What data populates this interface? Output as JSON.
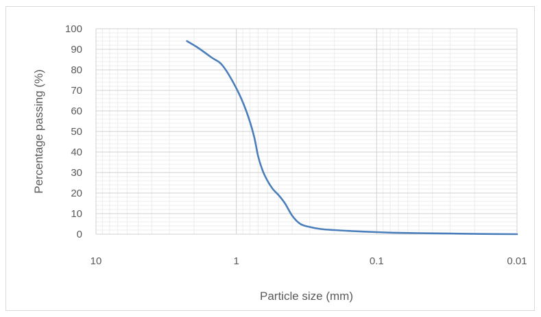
{
  "chart_data": {
    "type": "line",
    "xlabel": "Particle size (mm)",
    "ylabel": "Percentage passing (%)",
    "x_scale": "log",
    "x_reversed": true,
    "xlim": [
      10,
      0.01
    ],
    "ylim": [
      0,
      100
    ],
    "x_ticks": [
      10,
      1,
      0.1,
      0.01
    ],
    "x_tick_labels": [
      "10",
      "1",
      "0.1",
      "0.01"
    ],
    "y_ticks": [
      0,
      10,
      20,
      30,
      40,
      50,
      60,
      70,
      80,
      90,
      100
    ],
    "grid": true,
    "legend": "none",
    "series": [
      {
        "color": "#4a7ebb",
        "x": [
          2.25,
          1.9,
          1.5,
          1.25,
          1.0,
          0.85,
          0.75,
          0.7,
          0.65,
          0.6,
          0.55,
          0.5,
          0.45,
          0.4,
          0.35,
          0.3,
          0.25,
          0.2,
          0.15,
          0.1,
          0.075,
          0.05,
          0.03,
          0.02,
          0.01
        ],
        "y": [
          94,
          91,
          86,
          82,
          71,
          60,
          48,
          38,
          31,
          26,
          22,
          19,
          15,
          9,
          5,
          3.5,
          2.5,
          2,
          1.5,
          1,
          0.7,
          0.5,
          0.3,
          0.15,
          0
        ]
      }
    ]
  }
}
